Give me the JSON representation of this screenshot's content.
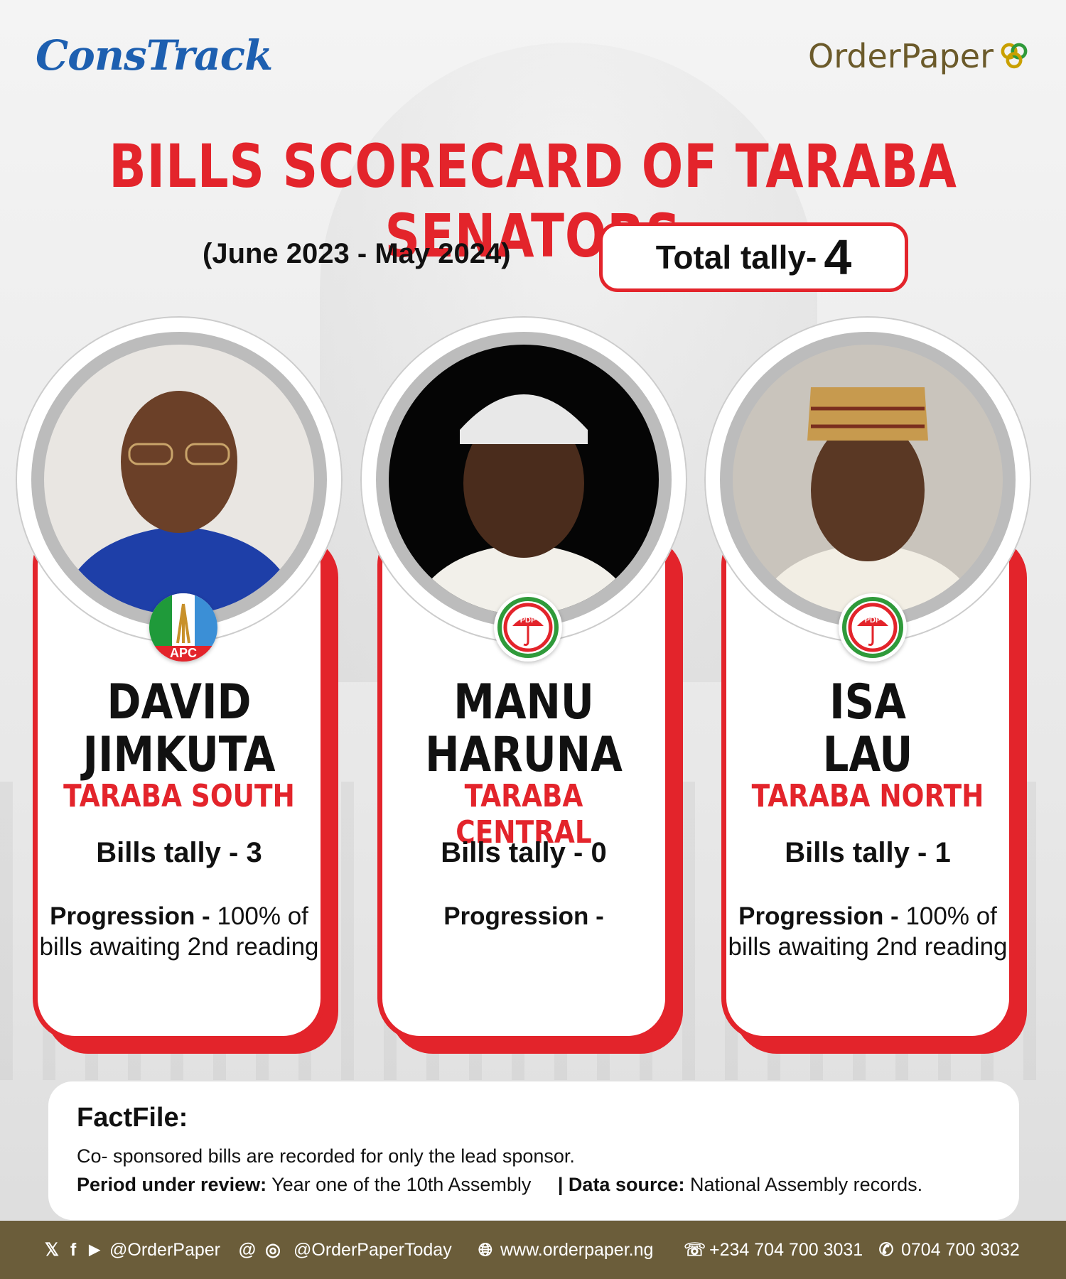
{
  "brand": {
    "left_logo": "ConsTrack",
    "right_logo": "OrderPaper"
  },
  "title": "BILLS SCORECARD OF TARABA SENATORS",
  "period": "(June 2023 - May 2024)",
  "total": {
    "label": "Total tally-",
    "value": "4"
  },
  "senators": [
    {
      "name_line1": "DAVID",
      "name_line2": "JIMKUTA",
      "district": "TARABA SOUTH",
      "party": "APC",
      "bills": "Bills tally - 3",
      "progression_label": "Progression -",
      "progression_text": "100% of bills awaiting 2nd reading"
    },
    {
      "name_line1": "MANU",
      "name_line2": "HARUNA",
      "district": "TARABA CENTRAL",
      "party": "PDP",
      "bills": "Bills tally - 0",
      "progression_label": "Progression -",
      "progression_text": ""
    },
    {
      "name_line1": "ISA",
      "name_line2": "LAU",
      "district": "TARABA NORTH",
      "party": "PDP",
      "bills": "Bills tally - 1",
      "progression_label": "Progression -",
      "progression_text": "100% of bills awaiting 2nd reading"
    }
  ],
  "factfile": {
    "title": "FactFile:",
    "line1": "Co- sponsored bills are recorded for only the lead sponsor.",
    "period_label": "Period under review:",
    "period_text": "Year one of the 10th Assembly",
    "source_label": "| Data source:",
    "source_text": "National Assembly records."
  },
  "footer": {
    "handle1": "@OrderPaper",
    "handle2": "@OrderPaperToday",
    "website": "www.orderpaper.ng",
    "phone": "+234 704 700 3031",
    "whatsapp": "0704 700 3032"
  },
  "colors": {
    "accent": "#e3242b",
    "footer_bg": "#6b5d3a",
    "logo_blue": "#1d5fb0"
  }
}
